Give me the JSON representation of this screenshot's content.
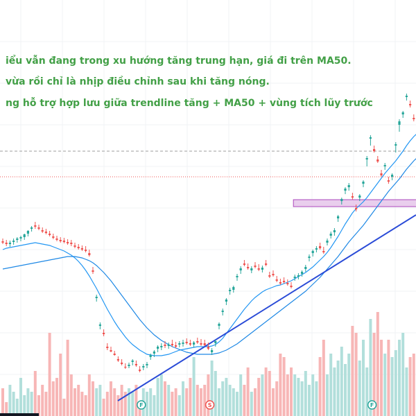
{
  "notes": [
    "iểu vẫn đang trong xu hướng tăng trung hạn, giá đi trên MA50.",
    "vừa rồi chỉ là nhịp điều chỉnh sau khi tăng nóng.",
    "ng hỗ trợ hợp lưu giữa trendline tăng + MA50 + vùng tích lũy trước"
  ],
  "markers": [
    {
      "label": "F",
      "index": 39,
      "color": "#26a69a"
    },
    {
      "label": "S",
      "index": 58,
      "color": "#ef5350"
    },
    {
      "label": "F",
      "index": 103,
      "color": "#26a69a"
    }
  ],
  "colors": {
    "up": "#26a69a",
    "down": "#ef5350",
    "vol_up": "#b2dfdb",
    "vol_down": "#f7b6b6",
    "ma_fast": "#2196f3",
    "ma_slow": "#1e88e5",
    "trendline": "#2a4bd7",
    "zone_fill": "#e1bee7",
    "zone_stroke": "#ab47bc",
    "note": "#43a047"
  },
  "chart_data": {
    "type": "candlestick",
    "x": [
      0,
      1,
      2,
      3,
      4,
      5,
      6,
      7,
      8,
      9,
      10,
      11,
      12,
      13,
      14,
      15,
      16,
      17,
      18,
      19,
      20,
      21,
      22,
      23,
      24,
      25,
      26,
      27,
      28,
      29,
      30,
      31,
      32,
      33,
      34,
      35,
      36,
      37,
      38,
      39,
      40,
      41,
      42,
      43,
      44,
      45,
      46,
      47,
      48,
      49,
      50,
      51,
      52,
      53,
      54,
      55,
      56,
      57,
      58,
      59,
      60,
      61,
      62,
      63,
      64,
      65,
      66,
      67,
      68,
      69,
      70,
      71,
      72,
      73,
      74,
      75,
      76,
      77,
      78,
      79,
      80,
      81,
      82,
      83,
      84,
      85,
      86,
      87,
      88,
      89,
      90,
      91,
      92,
      93,
      94,
      95,
      96,
      97,
      98,
      99,
      100,
      101,
      102,
      103,
      104,
      105,
      106,
      107,
      108,
      109,
      110,
      111,
      112,
      113,
      114,
      115
    ],
    "open": [
      348,
      350,
      352,
      349,
      346,
      344,
      342,
      337,
      330,
      325,
      328,
      332,
      334,
      337,
      341,
      344,
      346,
      347,
      349,
      350,
      354,
      356,
      358,
      360,
      365,
      390,
      430,
      470,
      480,
      500,
      505,
      510,
      518,
      523,
      529,
      528,
      522,
      525,
      533,
      530,
      527,
      515,
      510,
      503,
      501,
      497,
      499,
      496,
      498,
      497,
      496,
      493,
      495,
      497,
      492,
      495,
      495,
      500,
      508,
      495,
      470,
      450,
      435,
      420,
      418,
      400,
      390,
      380,
      385,
      390,
      383,
      387,
      389,
      380,
      397,
      395,
      403,
      407,
      405,
      408,
      412,
      401,
      399,
      395,
      388,
      372,
      365,
      360,
      355,
      362,
      350,
      340,
      335,
      315,
      290,
      275,
      270,
      283,
      300,
      285,
      265,
      230,
      200,
      215,
      230,
      250,
      240,
      260,
      255,
      210,
      180,
      165,
      140,
      150,
      170,
      178
    ],
    "high": [
      352,
      355,
      356,
      353,
      350,
      348,
      346,
      341,
      334,
      330,
      332,
      336,
      338,
      341,
      345,
      348,
      350,
      351,
      353,
      355,
      358,
      360,
      362,
      364,
      370,
      395,
      435,
      475,
      485,
      505,
      508,
      513,
      522,
      527,
      532,
      531,
      527,
      529,
      537,
      534,
      531,
      519,
      515,
      508,
      505,
      502,
      503,
      500,
      502,
      501,
      500,
      497,
      499,
      501,
      496,
      499,
      499,
      505,
      512,
      500,
      475,
      455,
      440,
      425,
      422,
      405,
      395,
      384,
      389,
      394,
      387,
      391,
      393,
      384,
      401,
      399,
      407,
      411,
      409,
      412,
      416,
      405,
      403,
      399,
      392,
      377,
      370,
      364,
      360,
      366,
      354,
      344,
      340,
      320,
      295,
      280,
      275,
      288,
      305,
      290,
      270,
      240,
      210,
      220,
      235,
      255,
      245,
      265,
      260,
      220,
      190,
      170,
      145,
      155,
      175,
      182
    ],
    "low": [
      344,
      346,
      347,
      344,
      342,
      340,
      337,
      332,
      326,
      320,
      324,
      328,
      330,
      333,
      337,
      340,
      342,
      343,
      345,
      346,
      350,
      352,
      354,
      355,
      360,
      385,
      425,
      465,
      475,
      495,
      500,
      506,
      514,
      518,
      524,
      523,
      518,
      520,
      528,
      525,
      522,
      510,
      505,
      498,
      495,
      492,
      494,
      490,
      493,
      492,
      490,
      488,
      490,
      492,
      487,
      489,
      490,
      494,
      502,
      490,
      465,
      445,
      430,
      415,
      412,
      395,
      384,
      375,
      380,
      384,
      378,
      381,
      383,
      375,
      392,
      390,
      398,
      402,
      400,
      403,
      407,
      396,
      394,
      390,
      382,
      367,
      360,
      355,
      350,
      356,
      344,
      334,
      329,
      310,
      285,
      270,
      264,
      278,
      295,
      280,
      260,
      225,
      195,
      210,
      225,
      245,
      235,
      255,
      250,
      205,
      172,
      160,
      135,
      145,
      165,
      172
    ],
    "close": [
      350,
      352,
      350,
      347,
      344,
      342,
      338,
      333,
      328,
      327,
      330,
      334,
      336,
      339,
      343,
      346,
      348,
      349,
      351,
      352,
      356,
      358,
      360,
      362,
      368,
      392,
      428,
      468,
      482,
      502,
      507,
      512,
      520,
      525,
      530,
      526,
      520,
      527,
      535,
      528,
      525,
      512,
      507,
      500,
      499,
      499,
      497,
      498,
      500,
      495,
      494,
      495,
      497,
      494,
      494,
      497,
      498,
      503,
      505,
      492,
      467,
      448,
      432,
      418,
      414,
      398,
      387,
      382,
      387,
      387,
      385,
      389,
      386,
      382,
      399,
      397,
      405,
      409,
      407,
      410,
      414,
      399,
      397,
      392,
      385,
      370,
      362,
      358,
      358,
      364,
      347,
      337,
      332,
      312,
      287,
      272,
      267,
      285,
      302,
      282,
      262,
      228,
      198,
      218,
      233,
      253,
      238,
      262,
      252,
      208,
      175,
      162,
      138,
      152,
      172,
      180
    ],
    "volume": [
      40,
      20,
      45,
      35,
      25,
      55,
      30,
      40,
      35,
      65,
      30,
      45,
      35,
      120,
      50,
      55,
      90,
      25,
      110,
      60,
      40,
      45,
      35,
      30,
      60,
      50,
      40,
      45,
      25,
      35,
      50,
      40,
      30,
      45,
      35,
      40,
      35,
      45,
      20,
      40,
      35,
      40,
      30,
      55,
      60,
      50,
      45,
      35,
      40,
      30,
      50,
      40,
      55,
      85,
      45,
      40,
      45,
      60,
      80,
      65,
      40,
      50,
      55,
      45,
      40,
      35,
      60,
      45,
      70,
      35,
      40,
      55,
      60,
      70,
      65,
      40,
      50,
      90,
      85,
      60,
      70,
      60,
      55,
      50,
      65,
      45,
      60,
      50,
      85,
      110,
      60,
      90,
      70,
      80,
      100,
      75,
      90,
      130,
      120,
      80,
      110,
      70,
      140,
      120,
      150,
      110,
      90,
      110,
      85,
      95,
      110,
      120,
      70,
      85,
      90,
      80
    ],
    "ma20": [
      360,
      358,
      357,
      356,
      355,
      354,
      353,
      352,
      351,
      350,
      351,
      352,
      353,
      354,
      356,
      358,
      360,
      362,
      365,
      368,
      372,
      377,
      383,
      390,
      398,
      407,
      416,
      426,
      436,
      446,
      455,
      464,
      472,
      479,
      486,
      492,
      497,
      501,
      505,
      508,
      511,
      512,
      513,
      513,
      513,
      512,
      511,
      509,
      507,
      505,
      504,
      503,
      502,
      501,
      500,
      500,
      500,
      500,
      499,
      497,
      493,
      488,
      481,
      474,
      467,
      460,
      453,
      446,
      440,
      434,
      429,
      425,
      421,
      418,
      416,
      414,
      412,
      411,
      409,
      407,
      405,
      402,
      399,
      396,
      393,
      389,
      385,
      380,
      375,
      370,
      364,
      357,
      349,
      341,
      332,
      323,
      315,
      307,
      301,
      296,
      291,
      285,
      278,
      271,
      264,
      257,
      250,
      244,
      238,
      232,
      225,
      218,
      210,
      203,
      197,
      192
    ],
    "ma50": [
      388,
      387,
      386,
      385,
      384,
      383,
      382,
      381,
      380,
      379,
      378,
      377,
      376,
      375,
      374,
      373,
      372,
      371,
      370,
      370,
      370,
      371,
      372,
      374,
      376,
      379,
      383,
      388,
      393,
      399,
      405,
      412,
      419,
      426,
      433,
      440,
      447,
      454,
      461,
      467,
      473,
      478,
      483,
      487,
      491,
      494,
      497,
      500,
      502,
      504,
      506,
      508,
      509,
      510,
      511,
      511,
      511,
      511,
      511,
      510,
      509,
      507,
      505,
      502,
      499,
      496,
      492,
      488,
      484,
      480,
      476,
      472,
      468,
      464,
      460,
      456,
      452,
      448,
      444,
      440,
      436,
      432,
      428,
      424,
      420,
      415,
      410,
      405,
      400,
      394,
      388,
      382,
      376,
      370,
      363,
      356,
      349,
      343,
      337,
      331,
      325,
      318,
      311,
      304,
      297,
      290,
      283,
      276,
      270,
      264,
      258,
      251,
      244,
      238,
      232,
      227
    ],
    "zone": {
      "price_top": 288,
      "price_bottom": 298,
      "x_from": 81,
      "x_to": 115
    },
    "trendline": {
      "x": [
        49,
        115
      ],
      "y": [
        584,
        310
      ]
    },
    "price_lines": [
      {
        "y": 218,
        "style": "dashed"
      },
      {
        "y": 255,
        "style": "dotted"
      }
    ]
  }
}
